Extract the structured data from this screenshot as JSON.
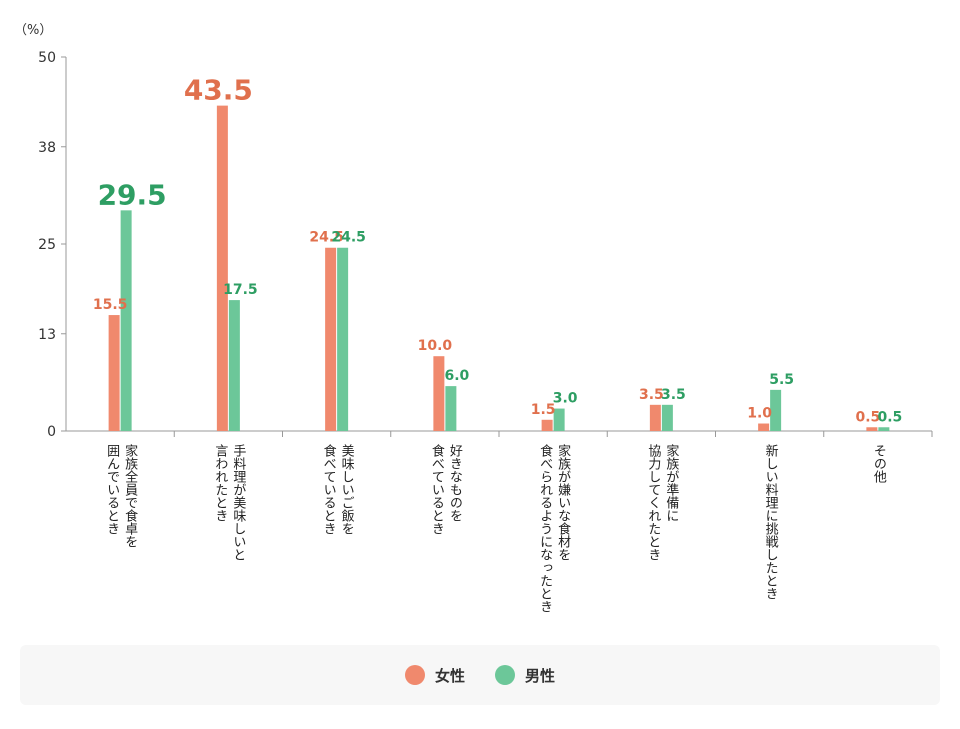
{
  "chart_data": {
    "type": "bar",
    "unit_label": "（%）",
    "yticks": [
      0,
      13,
      25,
      38,
      50
    ],
    "ylim": [
      0,
      50
    ],
    "categories": [
      "家族全員で食卓を\n囲んでいるとき",
      "手料理が美味しいと\n言われたとき",
      "美味しいご飯を\n食べているとき",
      "好きなものを\n食べているとき",
      "家族が嫌いな食材を\n食べられるようになったとき",
      "家族が準備に\n協力してくれたとき",
      "新しい料理に挑戦したとき",
      "その他"
    ],
    "series": [
      {
        "name": "女性",
        "color": "#f0896d",
        "label_color": "#e0704d",
        "values": [
          15.5,
          43.5,
          24.5,
          10.0,
          1.5,
          3.5,
          1.0,
          0.5
        ],
        "labels": [
          "15.5",
          "43.5",
          "24.5",
          "10.0",
          "1.5",
          "3.5",
          "1.0",
          "0.5"
        ]
      },
      {
        "name": "男性",
        "color": "#6cc799",
        "label_color": "#2e9e63",
        "values": [
          29.5,
          17.5,
          24.5,
          6.0,
          3.0,
          3.5,
          5.5,
          0.5
        ],
        "labels": [
          "29.5",
          "17.5",
          "24.5",
          "6.0",
          "3.0",
          "3.5",
          "5.5",
          "0.5"
        ]
      }
    ],
    "highlight": [
      {
        "series": 1,
        "index": 0
      },
      {
        "series": 0,
        "index": 1
      }
    ],
    "legend_position": "bottom"
  }
}
